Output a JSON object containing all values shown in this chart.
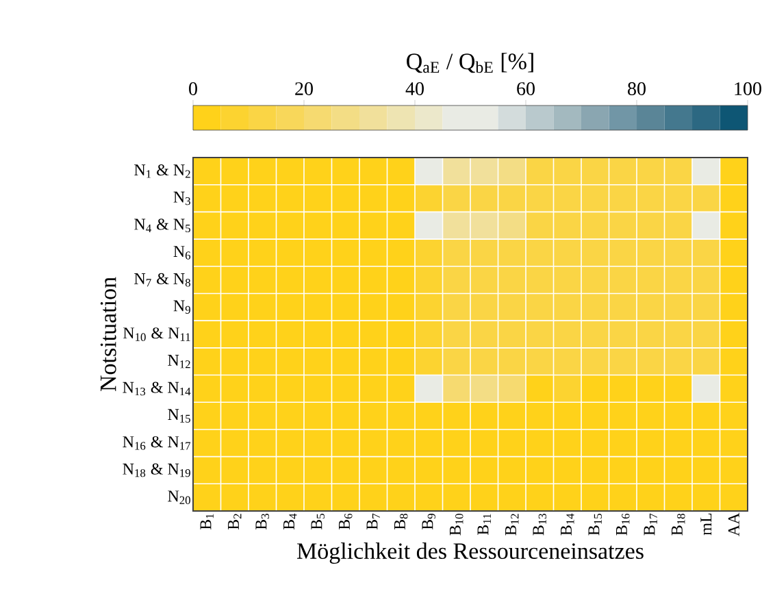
{
  "chart_data": {
    "type": "heatmap",
    "xlabel": "Möglichkeit des Ressourceneinsatzes",
    "ylabel": "Notsituation",
    "clabel": "Q$_{aE}$ / Q$_{bE}$ [%]",
    "categories": [
      "B$_{1}$",
      "B$_{2}$",
      "B$_{3}$",
      "B$_{4}$",
      "B$_{5}$",
      "B$_{6}$",
      "B$_{7}$",
      "B$_{8}$",
      "B$_{9}$",
      "B$_{10}$",
      "B$_{11}$",
      "B$_{12}$",
      "B$_{13}$",
      "B$_{14}$",
      "B$_{15}$",
      "B$_{16}$",
      "B$_{17}$",
      "B$_{18}$",
      "mL",
      "AA"
    ],
    "y_categories": [
      "N$_{1}$ & N$_{2}$",
      "N$_{3}$",
      "N$_{4}$ & N$_{5}$",
      "N$_{6}$",
      "N$_{7}$ & N$_{8}$",
      "N$_{9}$",
      "N$_{10}$ & N$_{11}$",
      "N$_{12}$",
      "N$_{13}$ & N$_{14}$",
      "N$_{15}$",
      "N$_{16}$ & N$_{17}$",
      "N$_{18}$ & N$_{19}$",
      "N$_{20}$"
    ],
    "cells": [
      [
        2.5,
        2.5,
        2.5,
        2.5,
        2.5,
        2.5,
        2.5,
        2.5,
        52.5,
        32.5,
        32.5,
        27.5,
        12.5,
        12.5,
        12.5,
        12.5,
        12.5,
        12.5,
        52.5,
        2.5
      ],
      [
        2.5,
        2.5,
        2.5,
        2.5,
        2.5,
        2.5,
        2.5,
        2.5,
        7.5,
        12.5,
        12.5,
        12.5,
        12.5,
        12.5,
        12.5,
        12.5,
        12.5,
        12.5,
        12.5,
        2.5
      ],
      [
        2.5,
        2.5,
        2.5,
        2.5,
        2.5,
        2.5,
        2.5,
        2.5,
        52.5,
        32.5,
        32.5,
        27.5,
        12.5,
        12.5,
        12.5,
        12.5,
        12.5,
        12.5,
        52.5,
        2.5
      ],
      [
        2.5,
        2.5,
        2.5,
        2.5,
        2.5,
        2.5,
        2.5,
        2.5,
        7.5,
        12.5,
        12.5,
        12.5,
        12.5,
        12.5,
        12.5,
        12.5,
        12.5,
        12.5,
        12.5,
        2.5
      ],
      [
        2.5,
        2.5,
        2.5,
        2.5,
        2.5,
        2.5,
        2.5,
        2.5,
        7.5,
        12.5,
        12.5,
        12.5,
        12.5,
        12.5,
        12.5,
        12.5,
        12.5,
        12.5,
        12.5,
        2.5
      ],
      [
        2.5,
        2.5,
        2.5,
        2.5,
        2.5,
        2.5,
        2.5,
        2.5,
        7.5,
        12.5,
        12.5,
        12.5,
        12.5,
        12.5,
        12.5,
        12.5,
        12.5,
        12.5,
        12.5,
        2.5
      ],
      [
        2.5,
        2.5,
        2.5,
        2.5,
        2.5,
        2.5,
        2.5,
        2.5,
        7.5,
        12.5,
        12.5,
        12.5,
        12.5,
        12.5,
        12.5,
        12.5,
        12.5,
        12.5,
        12.5,
        2.5
      ],
      [
        2.5,
        2.5,
        2.5,
        2.5,
        2.5,
        2.5,
        2.5,
        2.5,
        7.5,
        12.5,
        12.5,
        12.5,
        12.5,
        12.5,
        12.5,
        12.5,
        12.5,
        12.5,
        12.5,
        2.5
      ],
      [
        2.5,
        2.5,
        2.5,
        2.5,
        2.5,
        2.5,
        2.5,
        2.5,
        52.5,
        22.5,
        27.5,
        22.5,
        2.5,
        7.5,
        2.5,
        2.5,
        2.5,
        2.5,
        52.5,
        2.5
      ],
      [
        2.5,
        2.5,
        2.5,
        2.5,
        2.5,
        2.5,
        2.5,
        2.5,
        2.5,
        2.5,
        2.5,
        2.5,
        2.5,
        2.5,
        2.5,
        2.5,
        2.5,
        2.5,
        2.5,
        2.5
      ],
      [
        2.5,
        2.5,
        2.5,
        2.5,
        2.5,
        2.5,
        2.5,
        2.5,
        2.5,
        2.5,
        2.5,
        2.5,
        2.5,
        2.5,
        2.5,
        2.5,
        2.5,
        2.5,
        2.5,
        2.5
      ],
      [
        2.5,
        2.5,
        2.5,
        2.5,
        2.5,
        2.5,
        2.5,
        2.5,
        2.5,
        2.5,
        2.5,
        2.5,
        2.5,
        2.5,
        2.5,
        2.5,
        2.5,
        2.5,
        2.5,
        2.5
      ],
      [
        2.5,
        2.5,
        2.5,
        2.5,
        2.5,
        2.5,
        2.5,
        2.5,
        2.5,
        2.5,
        2.5,
        2.5,
        2.5,
        2.5,
        2.5,
        2.5,
        2.5,
        2.5,
        2.5,
        2.5
      ]
    ],
    "clim": [
      0,
      100
    ],
    "cticks": [
      0,
      20,
      40,
      60,
      80,
      100
    ],
    "grid": true
  }
}
